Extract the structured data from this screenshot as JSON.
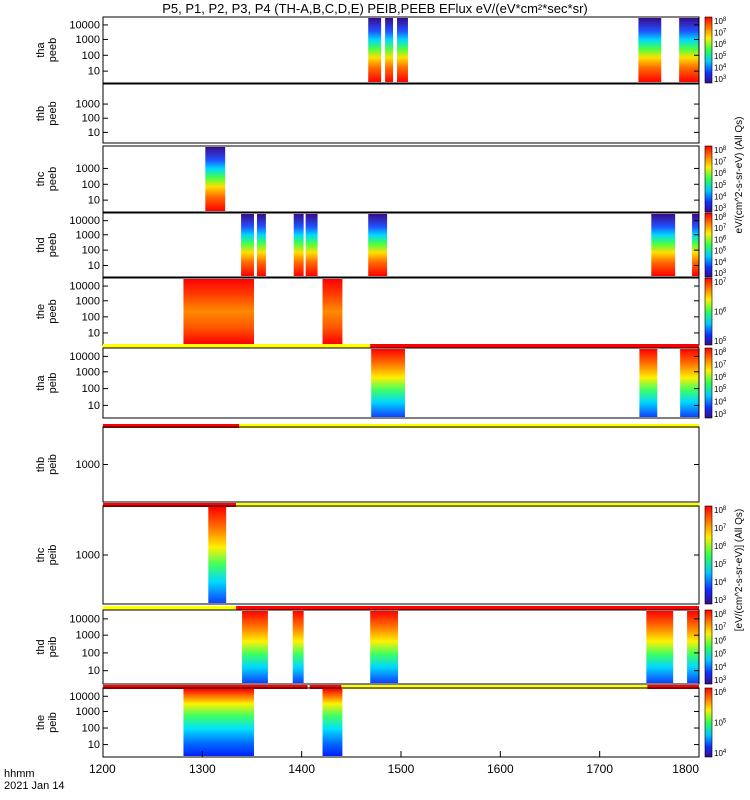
{
  "title": "P5, P1, P2, P3, P4 (TH-A,B,C,D,E) PEIB,PEEB EFlux eV/(eV*cm²*sec*sr)",
  "footer": {
    "label": "hhmm",
    "date": "2021 Jan 14"
  },
  "colors": {
    "yellow": "#ffff00",
    "red": "#ff0000",
    "axis": "#000000"
  },
  "x_ticks": [
    "1200",
    "1300",
    "1400",
    "1500",
    "1600",
    "1700",
    "1800"
  ],
  "colorbar_labels": {
    "peeb": "eV/(cm^2-s-sr-eV) (All Qs)",
    "peib": "[eV/(cm^2-s-sr-eV)] (All Qs)"
  },
  "chart_data": [
    {
      "type": "heatmap",
      "panel": "tha-peeb",
      "ylabel": [
        "tha",
        "peeb"
      ],
      "yscale": "log",
      "yticks": [
        "10000",
        "1000",
        "100",
        "10"
      ],
      "xlim": [
        1200,
        1800
      ],
      "blocks": [
        [
          1467,
          1480
        ],
        [
          1484,
          1492
        ],
        [
          1496,
          1507
        ],
        [
          1739,
          1762
        ],
        [
          1780,
          1800
        ]
      ],
      "colorbar": [
        "10^3",
        "10^4",
        "10^5",
        "10^6",
        "10^7",
        "10^8"
      ]
    },
    {
      "type": "heatmap",
      "panel": "thb-peeb",
      "ylabel": [
        "thb",
        "peeb"
      ],
      "yscale": "log",
      "yticks": [
        "1000",
        "100",
        "10"
      ],
      "xlim": [
        1200,
        1800
      ],
      "blocks": [],
      "colorbar": []
    },
    {
      "type": "heatmap",
      "panel": "thc-peeb",
      "ylabel": [
        "thc",
        "peeb"
      ],
      "yscale": "log",
      "yticks": [
        "1000",
        "100",
        "10"
      ],
      "xlim": [
        1200,
        1800
      ],
      "blocks": [
        [
          1303,
          1323
        ]
      ],
      "colorbar": [
        "10^3",
        "10^4",
        "10^5",
        "10^6",
        "10^7",
        "10^8"
      ]
    },
    {
      "type": "heatmap",
      "panel": "thd-peeb",
      "ylabel": [
        "thd",
        "peeb"
      ],
      "yscale": "log",
      "yticks": [
        "10000",
        "1000",
        "100",
        "10"
      ],
      "xlim": [
        1200,
        1800
      ],
      "blocks": [
        [
          1339,
          1352
        ],
        [
          1355,
          1364
        ],
        [
          1392,
          1402
        ],
        [
          1404,
          1416
        ],
        [
          1467,
          1486
        ],
        [
          1752,
          1776
        ],
        [
          1793,
          1800
        ]
      ],
      "colorbar": [
        "10^3",
        "10^4",
        "10^5",
        "10^6",
        "10^7",
        "10^8"
      ]
    },
    {
      "type": "heatmap",
      "panel": "the-peeb",
      "ylabel": [
        "the",
        "peeb"
      ],
      "yscale": "log",
      "yticks": [
        "10000",
        "1000",
        "100",
        "10"
      ],
      "xlim": [
        1200,
        1800
      ],
      "blocks": [
        [
          1281,
          1352
        ],
        [
          1421,
          1441
        ]
      ],
      "colorbar": [
        "10^5",
        "10^6",
        "10^7"
      ]
    },
    {
      "type": "heatmap",
      "panel": "tha-peib",
      "ylabel": [
        "tha",
        "peib"
      ],
      "yscale": "log",
      "yticks": [
        "10000",
        "1000",
        "100",
        "10"
      ],
      "xlim": [
        1200,
        1800
      ],
      "status_bar": [
        {
          "from": 1200,
          "to": 1469,
          "color": "yellow"
        },
        {
          "from": 1469,
          "to": 1800,
          "color": "red"
        }
      ],
      "blocks": [
        [
          1470,
          1504
        ],
        [
          1740,
          1758
        ],
        [
          1781,
          1800
        ]
      ],
      "colorbar": [
        "10^3",
        "10^4",
        "10^5",
        "10^6",
        "10^7",
        "10^8"
      ]
    },
    {
      "type": "heatmap",
      "panel": "thb-peib",
      "ylabel": [
        "thb",
        "peib"
      ],
      "yscale": "log",
      "yticks": [
        "1000"
      ],
      "xlim": [
        1200,
        1800
      ],
      "status_bar": [
        {
          "from": 1200,
          "to": 1337,
          "color": "red"
        },
        {
          "from": 1337,
          "to": 1800,
          "color": "yellow"
        }
      ],
      "blocks": [],
      "colorbar": []
    },
    {
      "type": "heatmap",
      "panel": "thc-peib",
      "ylabel": [
        "thc",
        "peib"
      ],
      "yscale": "log",
      "yticks": [
        "1000"
      ],
      "xlim": [
        1200,
        1800
      ],
      "status_bar": [
        {
          "from": 1200,
          "to": 1334,
          "color": "red"
        },
        {
          "from": 1334,
          "to": 1800,
          "color": "yellow"
        }
      ],
      "blocks": [
        [
          1306,
          1324
        ]
      ],
      "colorbar": [
        "10^3",
        "10^4",
        "10^5",
        "10^6",
        "10^7",
        "10^8"
      ]
    },
    {
      "type": "heatmap",
      "panel": "thd-peib",
      "ylabel": [
        "thd",
        "peib"
      ],
      "yscale": "log",
      "yticks": [
        "10000",
        "1000",
        "100",
        "10"
      ],
      "xlim": [
        1200,
        1800
      ],
      "status_bar": [
        {
          "from": 1200,
          "to": 1334,
          "color": "yellow"
        },
        {
          "from": 1334,
          "to": 1800,
          "color": "red"
        }
      ],
      "blocks": [
        [
          1340,
          1366
        ],
        [
          1391,
          1402
        ],
        [
          1469,
          1497
        ],
        [
          1747,
          1774
        ],
        [
          1788,
          1800
        ]
      ],
      "colorbar": [
        "10^3",
        "10^4",
        "10^5",
        "10^6",
        "10^7",
        "10^8"
      ]
    },
    {
      "type": "heatmap",
      "panel": "the-peib",
      "ylabel": [
        "the",
        "peib"
      ],
      "yscale": "log",
      "yticks": [
        "10000",
        "1000",
        "100",
        "10"
      ],
      "xlim": [
        1200,
        1800
      ],
      "status_bar": [
        {
          "from": 1200,
          "to": 1406,
          "color": "red"
        },
        {
          "from": 1408,
          "to": 1440,
          "color": "red"
        },
        {
          "from": 1440,
          "to": 1748,
          "color": "yellow"
        },
        {
          "from": 1748,
          "to": 1800,
          "color": "red"
        }
      ],
      "blocks": [
        [
          1281,
          1352
        ],
        [
          1421,
          1441
        ]
      ],
      "colorbar": [
        "10^4",
        "10^5",
        "10^6"
      ]
    }
  ]
}
